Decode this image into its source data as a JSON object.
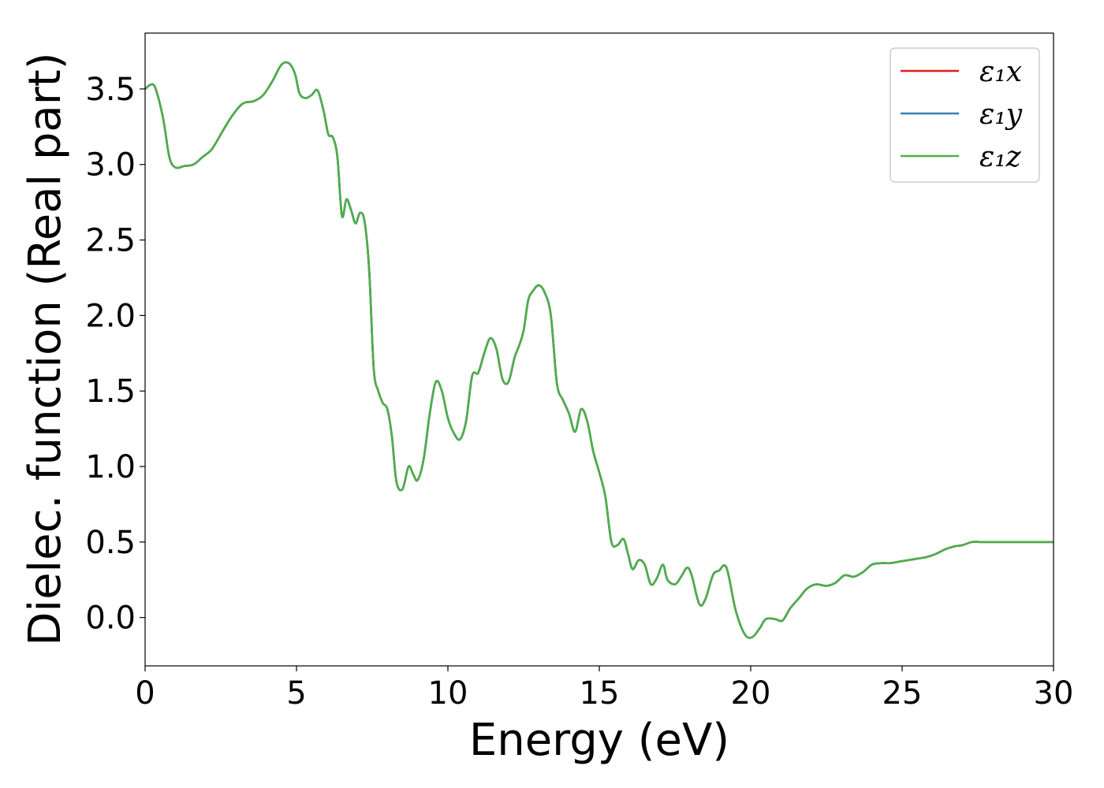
{
  "chart_data": {
    "type": "line",
    "xlabel": "Energy (eV)",
    "ylabel": "Dielec. function (Real part)",
    "xlim": [
      0,
      30
    ],
    "ylim": [
      -0.32,
      3.87
    ],
    "xticks": [
      "0",
      "5",
      "10",
      "15",
      "20",
      "25",
      "30"
    ],
    "yticks": [
      "0.0",
      "0.5",
      "1.0",
      "1.5",
      "2.0",
      "2.5",
      "3.0",
      "3.5"
    ],
    "grid": false,
    "legend_position": "top-right",
    "x": [
      0,
      0.2,
      0.35,
      0.6,
      0.8,
      1.0,
      1.3,
      1.6,
      1.9,
      2.2,
      2.5,
      2.8,
      3.1,
      3.3,
      3.6,
      3.9,
      4.2,
      4.5,
      4.75,
      4.95,
      5.1,
      5.3,
      5.5,
      5.7,
      5.9,
      6.05,
      6.2,
      6.35,
      6.5,
      6.65,
      6.8,
      6.95,
      7.1,
      7.25,
      7.4,
      7.55,
      7.7,
      7.85,
      8.0,
      8.15,
      8.3,
      8.5,
      8.7,
      8.85,
      9.0,
      9.2,
      9.4,
      9.6,
      9.8,
      10.0,
      10.2,
      10.4,
      10.6,
      10.8,
      11.0,
      11.2,
      11.4,
      11.6,
      11.8,
      12.0,
      12.2,
      12.35,
      12.5,
      12.65,
      12.8,
      13.0,
      13.2,
      13.4,
      13.6,
      13.8,
      14.0,
      14.2,
      14.4,
      14.6,
      14.8,
      15.0,
      15.2,
      15.4,
      15.6,
      15.8,
      15.95,
      16.1,
      16.3,
      16.5,
      16.7,
      16.9,
      17.1,
      17.25,
      17.5,
      17.7,
      17.9,
      18.05,
      18.3,
      18.5,
      18.75,
      18.95,
      19.2,
      19.5,
      19.8,
      20.05,
      20.3,
      20.5,
      20.8,
      21.05,
      21.3,
      21.6,
      21.8,
      22.0,
      22.2,
      22.5,
      22.8,
      23.1,
      23.4,
      23.7,
      24.0,
      24.3,
      24.6,
      24.9,
      25.2,
      25.5,
      25.8,
      26.1,
      26.4,
      26.7,
      27.0,
      27.3,
      27.6,
      27.9,
      28.2,
      28.5,
      28.8,
      29.1,
      29.4,
      29.7,
      30.0
    ],
    "series": [
      {
        "name": "ε₁x",
        "color": "#e41a1c"
      },
      {
        "name": "ε₁y",
        "color": "#377eb8"
      },
      {
        "name": "ε₁z",
        "color": "#4daf4a"
      }
    ],
    "y": [
      3.5,
      3.53,
      3.5,
      3.3,
      3.05,
      2.98,
      2.99,
      3.0,
      3.05,
      3.1,
      3.2,
      3.3,
      3.38,
      3.41,
      3.42,
      3.46,
      3.55,
      3.66,
      3.67,
      3.6,
      3.47,
      3.44,
      3.46,
      3.49,
      3.35,
      3.2,
      3.18,
      3.05,
      2.66,
      2.77,
      2.7,
      2.61,
      2.68,
      2.62,
      2.3,
      1.65,
      1.5,
      1.42,
      1.38,
      1.2,
      0.9,
      0.85,
      1.0,
      0.95,
      0.91,
      1.05,
      1.35,
      1.56,
      1.5,
      1.32,
      1.22,
      1.18,
      1.3,
      1.6,
      1.62,
      1.75,
      1.85,
      1.78,
      1.58,
      1.56,
      1.72,
      1.8,
      1.9,
      2.1,
      2.16,
      2.2,
      2.15,
      2.0,
      1.55,
      1.44,
      1.35,
      1.23,
      1.38,
      1.3,
      1.1,
      0.96,
      0.8,
      0.5,
      0.48,
      0.52,
      0.42,
      0.32,
      0.38,
      0.35,
      0.22,
      0.26,
      0.35,
      0.25,
      0.22,
      0.27,
      0.33,
      0.28,
      0.09,
      0.12,
      0.28,
      0.31,
      0.33,
      0.05,
      -0.11,
      -0.13,
      -0.07,
      -0.01,
      -0.01,
      -0.02,
      0.06,
      0.13,
      0.18,
      0.21,
      0.22,
      0.21,
      0.23,
      0.28,
      0.27,
      0.3,
      0.35,
      0.36,
      0.36,
      0.37,
      0.38,
      0.39,
      0.4,
      0.42,
      0.45,
      0.47,
      0.48,
      0.5,
      0.5,
      0.5,
      0.5,
      0.5,
      0.5,
      0.5,
      0.5,
      0.5,
      0.5
    ]
  }
}
